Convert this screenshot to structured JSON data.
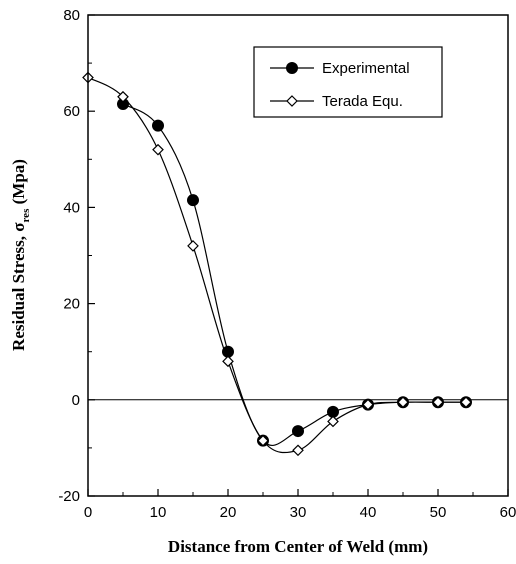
{
  "chart_data": {
    "type": "line",
    "xlabel": "Distance from Center of Weld (mm)",
    "ylabel_main": "Residual Stress, ",
    "ylabel_symbol": "σ",
    "ylabel_subscript": "res",
    "ylabel_unit": " (Mpa)",
    "xlim": [
      0,
      60
    ],
    "ylim": [
      -20,
      80
    ],
    "xticks": [
      "0",
      "10",
      "20",
      "30",
      "40",
      "50",
      "60"
    ],
    "yticks": [
      "-20",
      "0",
      "20",
      "40",
      "60",
      "80"
    ],
    "grid": false,
    "legend_position": "top-right",
    "zero_line": true,
    "series": [
      {
        "name": "Experimental",
        "marker": "filled-circle",
        "color": "#000000",
        "x": [
          5,
          10,
          15,
          20,
          25,
          30,
          35,
          40,
          45,
          50,
          54
        ],
        "y": [
          61.5,
          57,
          41.5,
          10,
          -8.5,
          -6.5,
          -2.5,
          -1,
          -0.5,
          -0.5,
          -0.5
        ]
      },
      {
        "name": "Terada Equ.",
        "marker": "open-diamond",
        "color": "#000000",
        "x": [
          0,
          5,
          10,
          15,
          20,
          25,
          30,
          35,
          40,
          45,
          50,
          54
        ],
        "y": [
          67,
          63,
          52,
          32,
          8,
          -8.5,
          -10.5,
          -4.5,
          -1,
          -0.5,
          -0.5,
          -0.5
        ]
      }
    ]
  }
}
